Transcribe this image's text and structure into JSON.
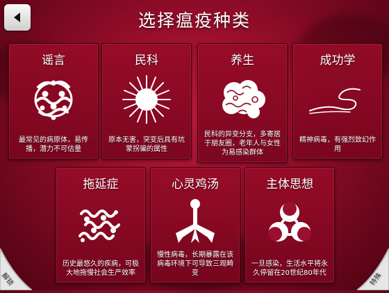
{
  "header": {
    "title": "选择瘟疫种类"
  },
  "cards": [
    {
      "title": "谣言",
      "desc": "最常见的病原体，易传播，潜力不可估量",
      "icon": "bacteria-icon"
    },
    {
      "title": "民科",
      "desc": "原本无害，突变后具有坑蒙拐骗的属性",
      "icon": "virus-icon"
    },
    {
      "title": "养生",
      "desc": "民科的异变分支，多寄居于朋友圈，老年人与女性为易感染群体",
      "icon": "fungus-icon"
    },
    {
      "title": "成功学",
      "desc": "精神病毒，有强烈致幻作用",
      "icon": "parasite-icon"
    },
    {
      "title": "拖延症",
      "desc": "历史最悠久的疾病，可极大地拖慢社会生产效率",
      "icon": "prion-icon"
    },
    {
      "title": "心灵鸡汤",
      "desc": "慢性病毒，长期暴露在该病毒环境下可导致三观畸变",
      "icon": "nano-virus-icon"
    },
    {
      "title": "主体思想",
      "desc": "一旦感染，生活水平将永久停留在20世纪80年代",
      "icon": "biohazard-icon"
    }
  ],
  "footer": {
    "left_label": "解锁",
    "right_label": "特殊"
  }
}
